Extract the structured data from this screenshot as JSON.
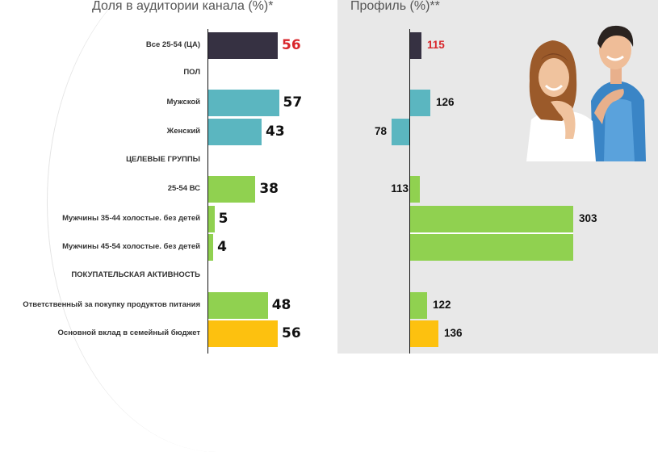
{
  "left_title": "Доля в аудитории канала (%)*",
  "right_title": "Профиль (%)**",
  "colors": {
    "base": "#363142",
    "gender": "#5bb6c0",
    "target": "#90d150",
    "buying": "#fdc10f",
    "highlight": "#d8262b"
  },
  "chart_data": [
    {
      "type": "bar",
      "orientation": "horizontal",
      "title": "Доля в аудитории канала (%)*",
      "rows": [
        {
          "label": "Все 25-54 (ЦА)",
          "value": 56,
          "group": "base"
        },
        {
          "label": "ПОЛ",
          "value": null,
          "group": "header"
        },
        {
          "label": "Мужской",
          "value": 57,
          "group": "gender"
        },
        {
          "label": "Женский",
          "value": 43,
          "group": "gender"
        },
        {
          "label": "ЦЕЛЕВЫЕ ГРУППЫ",
          "value": null,
          "group": "header"
        },
        {
          "label": "25-54 ВС",
          "value": 38,
          "group": "target"
        },
        {
          "label": "Мужчины 35-44 холостые. без детей",
          "value": 5,
          "group": "target"
        },
        {
          "label": "Мужчины 45-54 холостые. без детей",
          "value": 4,
          "group": "target"
        },
        {
          "label": "ПОКУПАТЕЛЬСКАЯ АКТИВНОСТЬ",
          "value": null,
          "group": "header"
        },
        {
          "label": "Ответственный за покупку продуктов питания",
          "value": 48,
          "group": "target"
        },
        {
          "label": "Основной вклад в семейный бюджет",
          "value": 56,
          "group": "buying"
        }
      ],
      "xlim": [
        0,
        100
      ]
    },
    {
      "type": "bar",
      "orientation": "horizontal",
      "title": "Профиль (%)**",
      "baseline": 100,
      "rows": [
        {
          "label": "Все 25-54 (ЦА)",
          "value": 115,
          "group": "base",
          "highlight": true
        },
        {
          "label": "ПОЛ",
          "value": null,
          "group": "header"
        },
        {
          "label": "Мужской",
          "value": 126,
          "group": "gender"
        },
        {
          "label": "Женский",
          "value": 78,
          "group": "gender"
        },
        {
          "label": "ЦЕЛЕВЫЕ ГРУППЫ",
          "value": null,
          "group": "header"
        },
        {
          "label": "25-54 ВС",
          "value": 113,
          "group": "target"
        },
        {
          "label": "Мужчины 35-44 холостые. без детей",
          "value": 303,
          "group": "target"
        },
        {
          "label": "Мужчины 45-54 холостые. без детей",
          "value": 303,
          "group": "target",
          "value_label_hidden": true
        },
        {
          "label": "ПОКУПАТЕЛЬСКАЯ АКТИВНОСТЬ",
          "value": null,
          "group": "header"
        },
        {
          "label": "Ответственный за покупку продуктов питания",
          "value": 122,
          "group": "target"
        },
        {
          "label": "Основной вклад в семейный бюджет",
          "value": 136,
          "group": "buying"
        }
      ]
    }
  ]
}
